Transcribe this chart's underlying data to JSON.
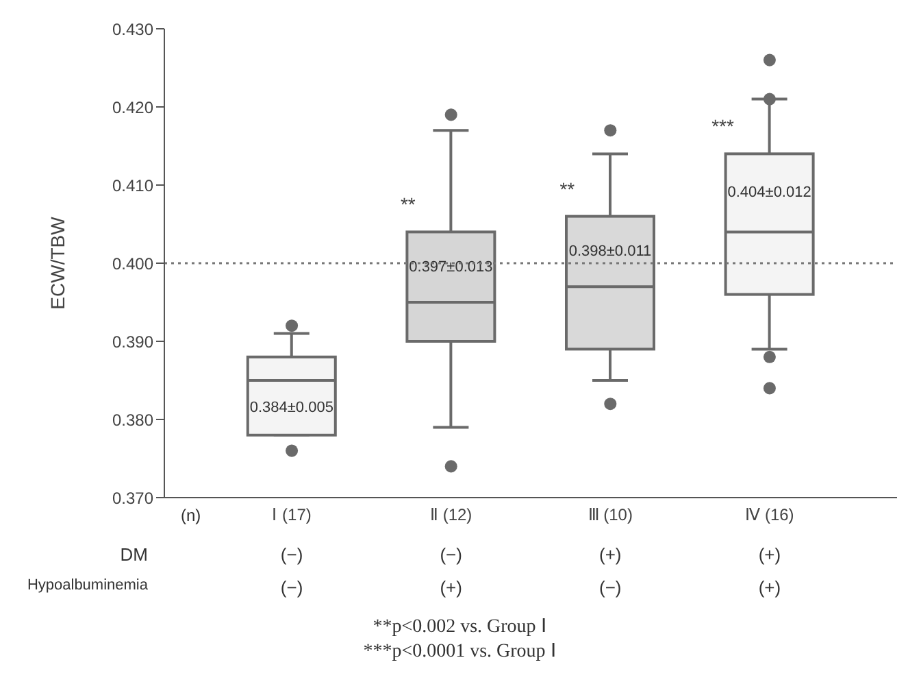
{
  "chart_data": {
    "type": "box",
    "ylabel": "ECW/TBW",
    "xlabel": "(n)",
    "categories": [
      "Ⅰ (17)",
      "Ⅱ (12)",
      "Ⅲ (10)",
      "Ⅳ (16)"
    ],
    "boxes": [
      {
        "low": 0.378,
        "q1": 0.378,
        "median": 0.385,
        "q3": 0.388,
        "high": 0.391,
        "outliers": [
          0.392,
          0.376
        ]
      },
      {
        "low": 0.379,
        "q1": 0.39,
        "median": 0.395,
        "q3": 0.404,
        "high": 0.417,
        "outliers": [
          0.419,
          0.374
        ]
      },
      {
        "low": 0.385,
        "q1": 0.389,
        "median": 0.397,
        "q3": 0.406,
        "high": 0.414,
        "outliers": [
          0.417,
          0.382
        ]
      },
      {
        "low": 0.389,
        "q1": 0.396,
        "median": 0.404,
        "q3": 0.414,
        "high": 0.421,
        "outliers": [
          0.426,
          0.421,
          0.388,
          0.384
        ]
      }
    ],
    "colors": [
      "#f4f4f4",
      "#d6d6d6",
      "#d9d9d9",
      "#f4f4f4"
    ],
    "value_labels": [
      "0.384±0.005",
      "0.397±0.013",
      "0.398±0.011",
      "0.404±0.012"
    ],
    "ylim": [
      0.37,
      0.43
    ],
    "yticks": [
      {
        "value": 0.37,
        "label": "0.370"
      },
      {
        "value": 0.38,
        "label": "0.380"
      },
      {
        "value": 0.39,
        "label": "0.390"
      },
      {
        "value": 0.4,
        "label": "0.400"
      },
      {
        "value": 0.41,
        "label": "0.410"
      },
      {
        "value": 0.42,
        "label": "0.420"
      },
      {
        "value": 0.43,
        "label": "0.430"
      }
    ],
    "ref_lines": [
      {
        "axis": "y",
        "value": 0.4,
        "line_style": "dotted",
        "color": "#777777"
      }
    ],
    "marker": "circle",
    "grid": false,
    "legend": false,
    "annotations": [
      {
        "text": "**",
        "x": "Ⅱ (12)",
        "y": 0.4075
      },
      {
        "text": "**",
        "x": "Ⅲ (10)",
        "y": 0.4095
      },
      {
        "text": "***",
        "x": "Ⅳ (16)",
        "y": 0.4175
      },
      "DM",
      "(−)",
      "(−)",
      "(+)",
      "(+)",
      "Hypoalbuminemia",
      "(−)",
      "(+)",
      "(−)",
      "(+)",
      "**p<0.002 vs. Group Ⅰ",
      "***p<0.0001 vs. Group Ⅰ"
    ]
  }
}
